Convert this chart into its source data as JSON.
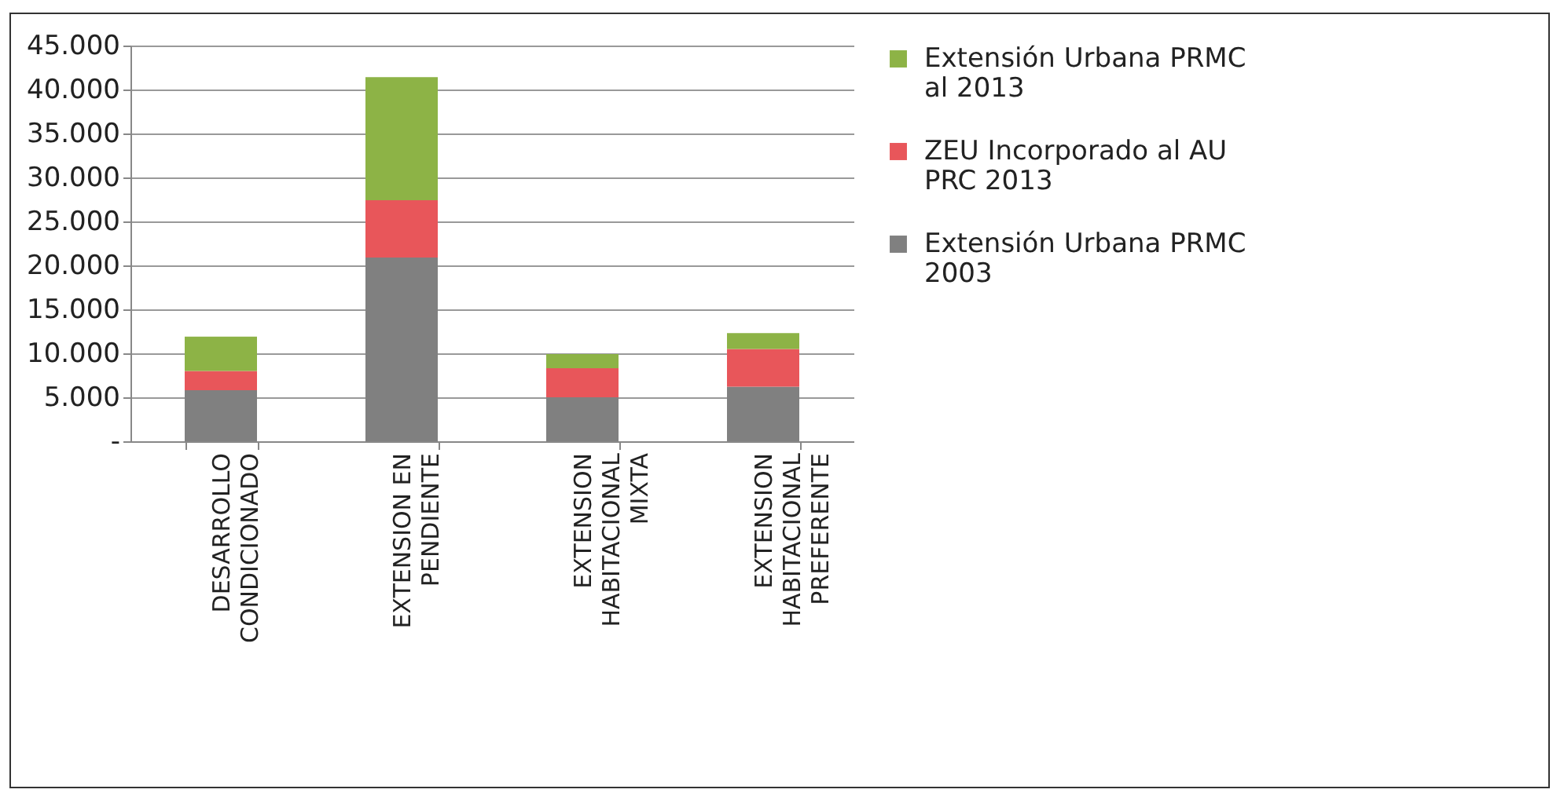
{
  "chart_data": {
    "type": "bar",
    "stacked": true,
    "categories": [
      "DESARROLLO CONDICIONADO",
      "EXTENSION EN PENDIENTE",
      "EXTENSION HABITACIONAL MIXTA",
      "EXTENSION HABITACIONAL PREFERENTE"
    ],
    "series": [
      {
        "name": "Extensión Urbana PRMC 2003",
        "color": "#808080",
        "values": [
          5800,
          20900,
          5000,
          6200
        ]
      },
      {
        "name": "ZEU Incorporado al AU PRC 2013",
        "color": "#e8565a",
        "values": [
          2200,
          6500,
          3300,
          4300
        ]
      },
      {
        "name": "Extensión Urbana PRMC al 2013",
        "color": "#8db346",
        "values": [
          3900,
          14000,
          1600,
          1800
        ]
      }
    ],
    "ylim": [
      0,
      45000
    ],
    "yticks": [
      {
        "value": 0,
        "label": "-"
      },
      {
        "value": 5000,
        "label": "5.000"
      },
      {
        "value": 10000,
        "label": "10.000"
      },
      {
        "value": 15000,
        "label": "15.000"
      },
      {
        "value": 20000,
        "label": "20.000"
      },
      {
        "value": 25000,
        "label": "25.000"
      },
      {
        "value": 30000,
        "label": "30.000"
      },
      {
        "value": 35000,
        "label": "35.000"
      },
      {
        "value": 40000,
        "label": "40.000"
      },
      {
        "value": 45000,
        "label": "45.000"
      }
    ],
    "grid": "y",
    "legend": "right"
  }
}
